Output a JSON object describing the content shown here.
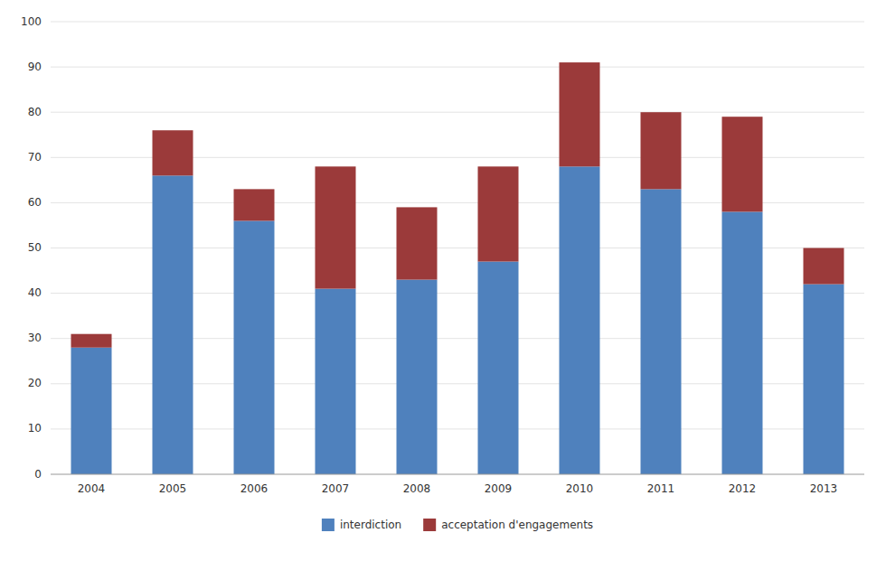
{
  "chart_data": {
    "type": "bar",
    "stacked": true,
    "categories": [
      "2004",
      "2005",
      "2006",
      "2007",
      "2008",
      "2009",
      "2010",
      "2011",
      "2012",
      "2013"
    ],
    "series": [
      {
        "name": "interdiction",
        "color": "#4F81BD",
        "values": [
          28,
          66,
          56,
          41,
          43,
          47,
          68,
          63,
          58,
          42
        ]
      },
      {
        "name": "acceptation d'engagements",
        "color": "#9B3A3A",
        "values": [
          3,
          10,
          7,
          27,
          16,
          21,
          23,
          17,
          21,
          8
        ]
      }
    ],
    "ylim": [
      0,
      100
    ],
    "yticks": [
      0,
      10,
      20,
      30,
      40,
      50,
      60,
      70,
      80,
      90,
      100
    ],
    "grid": true,
    "legend": "bottom"
  }
}
